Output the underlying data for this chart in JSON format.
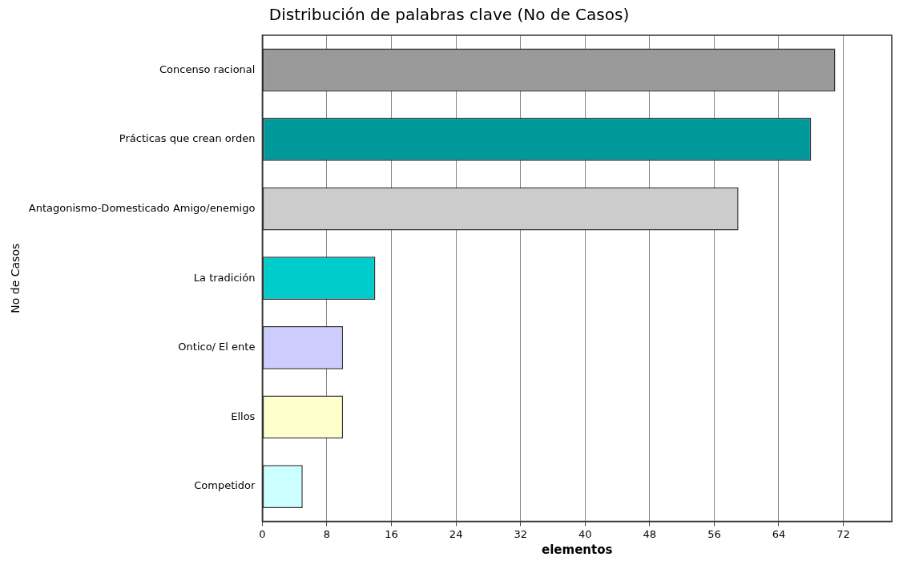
{
  "chart_data": {
    "type": "bar",
    "orientation": "horizontal",
    "title": "Distribución de palabras clave (No de Casos)",
    "xlabel": "elementos",
    "ylabel": "No de Casos",
    "categories": [
      "Concenso racional",
      "Prácticas que crean orden",
      "Antagonismo-Domesticado Amigo/enemigo",
      "La tradición",
      "Ontico/ El ente",
      "Ellos",
      "Competidor"
    ],
    "values": [
      71,
      68,
      59,
      14,
      10,
      10,
      5
    ],
    "colors": [
      "#999999",
      "#009999",
      "#cccccc",
      "#00cccc",
      "#ccccff",
      "#ffffcc",
      "#ccffff"
    ],
    "xlim": [
      0,
      78
    ],
    "xticks": [
      0,
      8,
      16,
      24,
      32,
      40,
      48,
      56,
      64,
      72
    ],
    "grid": "x"
  }
}
